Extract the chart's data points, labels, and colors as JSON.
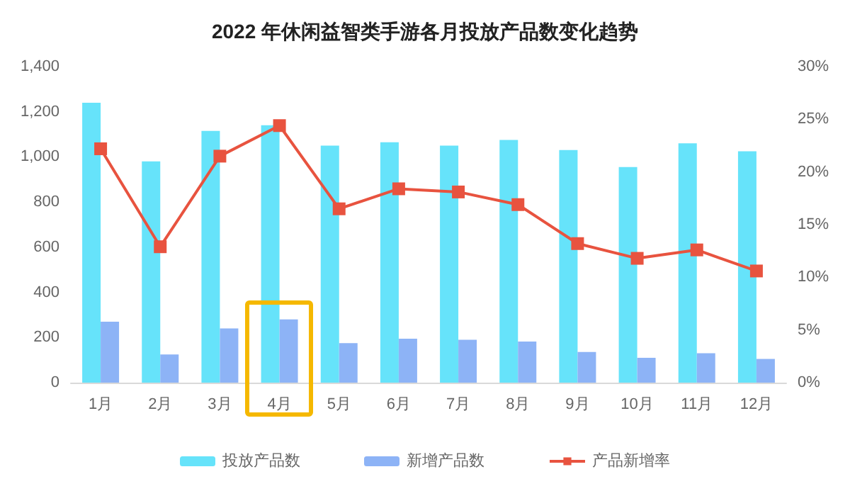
{
  "chart_data": {
    "type": "bar",
    "title": "2022 年休闲益智类手游各月投放产品数变化趋势",
    "categories": [
      "1月",
      "2月",
      "3月",
      "4月",
      "5月",
      "6月",
      "7月",
      "8月",
      "9月",
      "10月",
      "11月",
      "12月"
    ],
    "series": [
      {
        "name": "投放产品数",
        "color": "#66e3fa",
        "values": [
          1240,
          980,
          1115,
          1140,
          1050,
          1065,
          1050,
          1075,
          1030,
          955,
          1060,
          1025
        ]
      },
      {
        "name": "新增产品数",
        "color": "#8db3f6",
        "values": [
          270,
          125,
          240,
          280,
          175,
          195,
          190,
          182,
          136,
          110,
          130,
          105
        ]
      },
      {
        "name": "产品新增率",
        "type": "line",
        "axis": "y2",
        "color": "#e8533f",
        "marker": "square",
        "values": [
          22.2,
          12.9,
          21.5,
          24.4,
          16.5,
          18.4,
          18.1,
          16.9,
          13.2,
          11.8,
          12.6,
          10.6
        ]
      }
    ],
    "ylim": [
      0,
      1400
    ],
    "yticks": [
      {
        "value": 0,
        "label": "0"
      },
      {
        "value": 200,
        "label": "200"
      },
      {
        "value": 400,
        "label": "400"
      },
      {
        "value": 600,
        "label": "600"
      },
      {
        "value": 800,
        "label": "800"
      },
      {
        "value": 1000,
        "label": "1,000"
      },
      {
        "value": 1200,
        "label": "1,200"
      },
      {
        "value": 1400,
        "label": "1,400"
      }
    ],
    "y2lim": [
      0,
      30
    ],
    "y2ticks": [
      {
        "value": 0,
        "label": "0%"
      },
      {
        "value": 5,
        "label": "5%"
      },
      {
        "value": 10,
        "label": "10%"
      },
      {
        "value": 15,
        "label": "15%"
      },
      {
        "value": 20,
        "label": "20%"
      },
      {
        "value": 25,
        "label": "25%"
      },
      {
        "value": 30,
        "label": "30%"
      }
    ],
    "grid": false,
    "legend": "bottom"
  }
}
